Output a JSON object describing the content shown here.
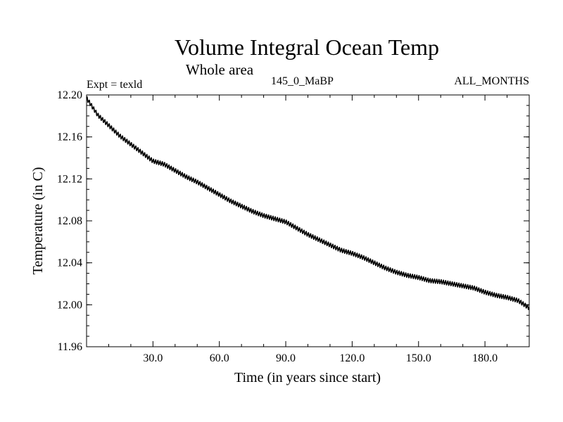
{
  "chart_data": {
    "type": "line",
    "title": "Volume Integral Ocean Temp",
    "subtitle": "Whole area",
    "experiment_label": "Expt = texld",
    "run_label": "145_0_MaBP",
    "period_label": "ALL_MONTHS",
    "xlabel": "Time (in years since start)",
    "ylabel": "Temperature (in C)",
    "xlim": [
      0,
      200
    ],
    "ylim": [
      11.96,
      12.2
    ],
    "x_ticks": [
      30,
      60,
      90,
      120,
      150,
      180
    ],
    "x_tick_labels": [
      "30.0",
      "60.0",
      "90.0",
      "120.0",
      "150.0",
      "180.0"
    ],
    "y_ticks": [
      11.96,
      12.0,
      12.04,
      12.08,
      12.12,
      12.16,
      12.2
    ],
    "y_tick_labels": [
      "11.96",
      "12.00",
      "12.04",
      "12.08",
      "12.12",
      "12.16",
      "12.20"
    ],
    "grid": false,
    "line_color": "#000000",
    "seasonal_amplitude": 0.002,
    "series": [
      {
        "name": "Volume Integral Ocean Temp",
        "x": [
          0,
          5,
          10,
          15,
          20,
          25,
          30,
          35,
          40,
          45,
          50,
          55,
          60,
          65,
          70,
          75,
          80,
          85,
          90,
          95,
          100,
          105,
          110,
          115,
          120,
          125,
          130,
          135,
          140,
          145,
          150,
          155,
          160,
          165,
          170,
          175,
          180,
          185,
          190,
          195,
          200
        ],
        "values": [
          12.197,
          12.181,
          12.171,
          12.161,
          12.153,
          12.145,
          12.137,
          12.134,
          12.128,
          12.122,
          12.117,
          12.111,
          12.105,
          12.099,
          12.094,
          12.089,
          12.085,
          12.082,
          12.079,
          12.073,
          12.067,
          12.062,
          12.057,
          12.052,
          12.049,
          12.045,
          12.04,
          12.035,
          12.031,
          12.028,
          12.026,
          12.023,
          12.022,
          12.02,
          12.018,
          12.016,
          12.012,
          12.009,
          12.007,
          12.004,
          11.997
        ]
      }
    ]
  }
}
